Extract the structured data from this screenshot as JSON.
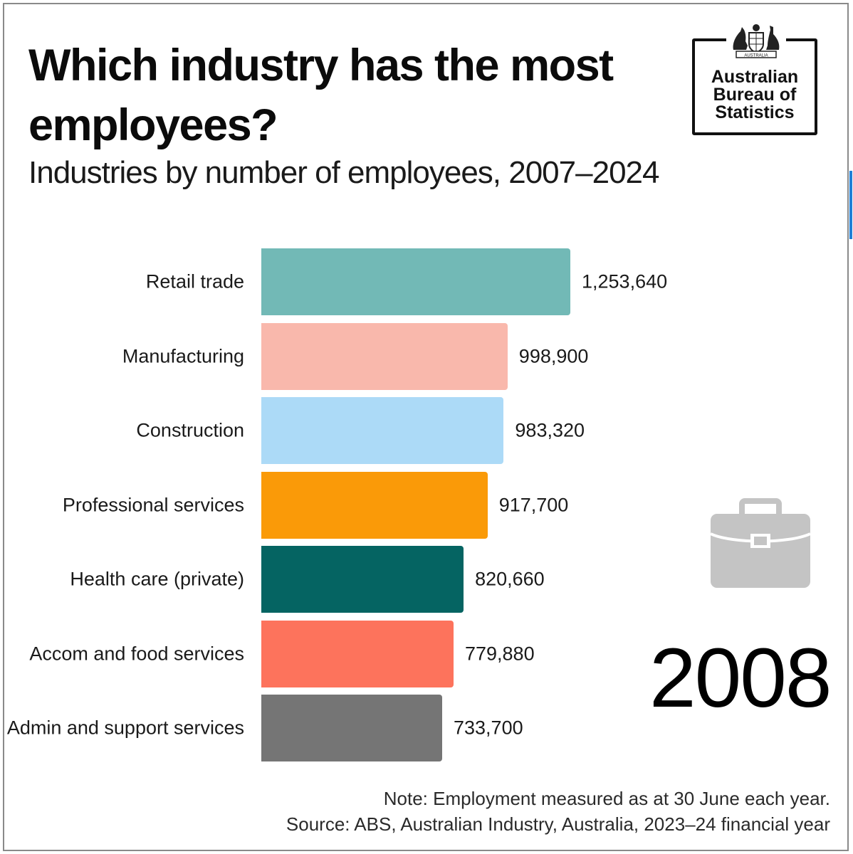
{
  "chart_data": {
    "type": "bar",
    "orientation": "horizontal",
    "title": "Which industry has the most employees?",
    "subtitle": "Industries by number of employees, 2007–2024",
    "year": "2008",
    "categories": [
      "Retail trade",
      "Manufacturing",
      "Construction",
      "Professional services",
      "Health care (private)",
      "Accom and food services",
      "Admin and support services"
    ],
    "values": [
      1253640,
      998900,
      983320,
      917700,
      820660,
      779880,
      733700
    ],
    "value_labels": [
      "1,253,640",
      "998,900",
      "983,320",
      "917,700",
      "820,660",
      "779,880",
      "733,700"
    ],
    "colors": [
      "#72b9b6",
      "#f9b8ac",
      "#acdaf7",
      "#fa9a08",
      "#056462",
      "#fd735c",
      "#757575"
    ],
    "xlim": [
      0,
      1253640
    ]
  },
  "logo": {
    "lines": [
      "Australian",
      "Bureau of",
      "Statistics"
    ],
    "crest_text": "AUSTRALIA"
  },
  "footer": {
    "note": "Note: Employment measured as at 30 June each year.",
    "source": "Source: ABS, Australian Industry, Australia, 2023–24 financial year"
  },
  "icons": {
    "briefcase": "briefcase-icon",
    "crest": "coat-of-arms-icon"
  }
}
